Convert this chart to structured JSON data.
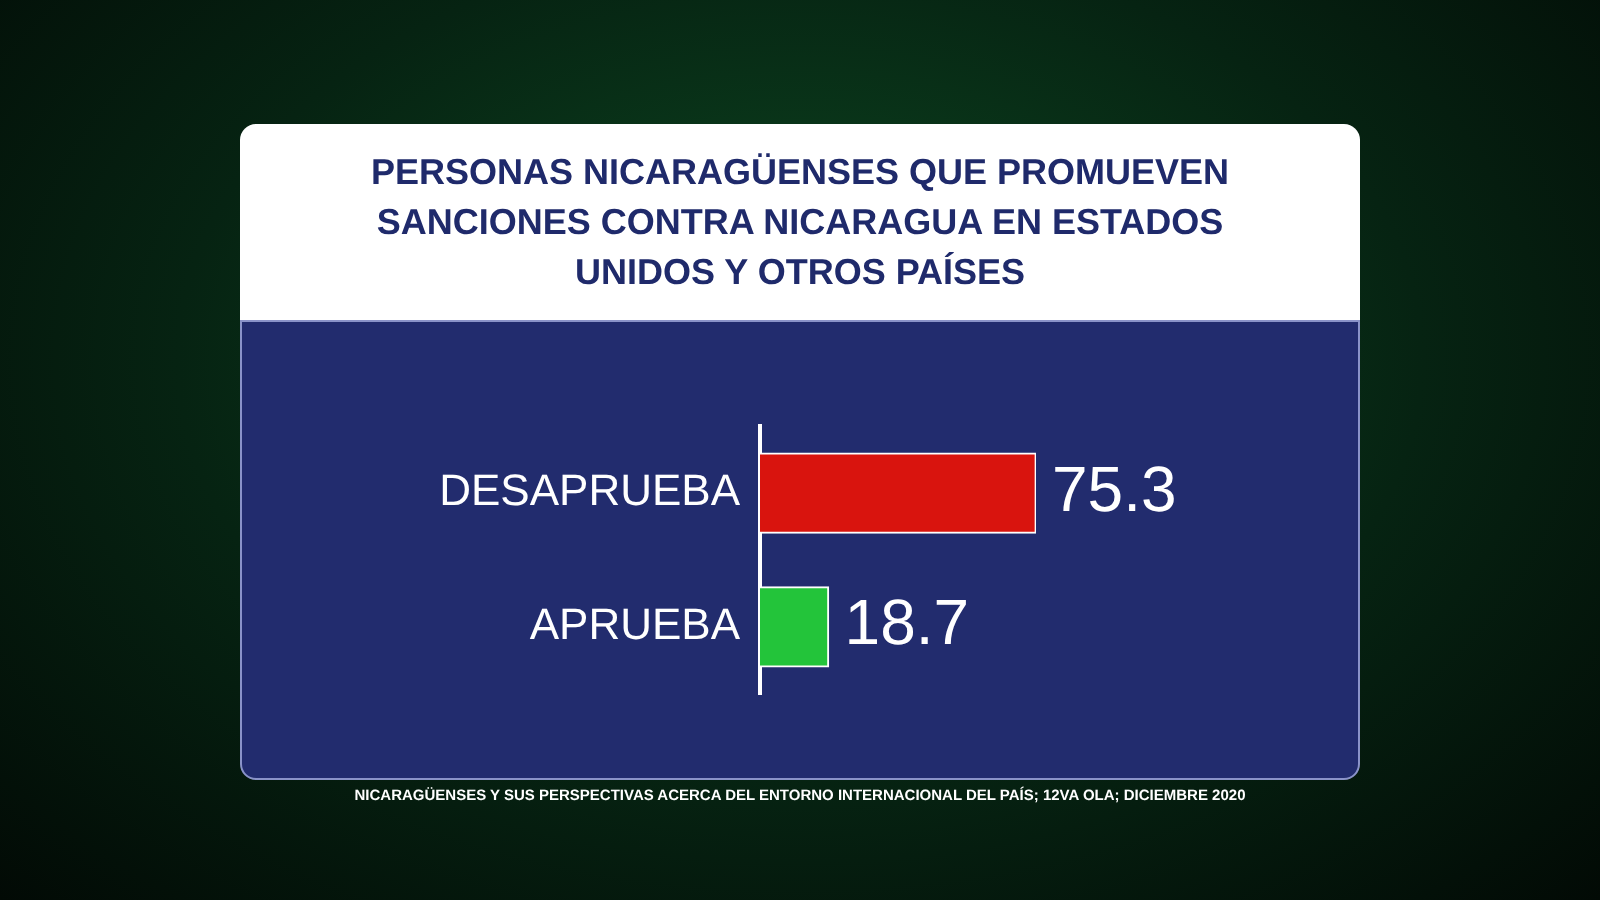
{
  "chart_data": {
    "type": "bar",
    "orientation": "horizontal",
    "title": "PERSONAS NICARAGÜENSES QUE PROMUEVEN SANCIONES CONTRA NICARAGUA EN ESTADOS UNIDOS Y OTROS PAÍSES",
    "categories": [
      "DESAPRUEBA",
      "APRUEBA"
    ],
    "values": [
      75.3,
      18.7
    ],
    "colors": [
      "#d9140e",
      "#23c43a"
    ],
    "data_labels": true,
    "legend": false,
    "annotations": [
      "NICARAGÜENSES Y SUS PERSPECTIVAS ACERCA DEL ENTORNO INTERNACIONAL DEL PAÍS; 12VA OLA; DICIEMBRE 2020"
    ]
  }
}
